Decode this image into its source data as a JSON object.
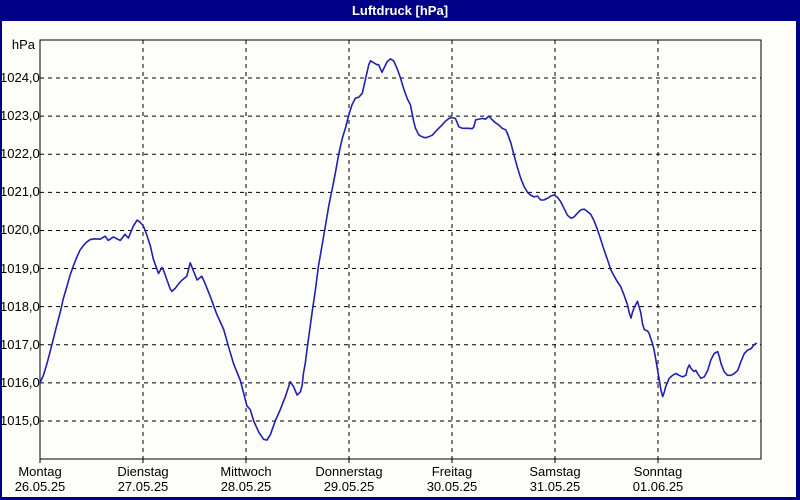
{
  "window": {
    "title": "Luftdruck [hPa]"
  },
  "colors": {
    "frame": "#000086",
    "title_text": "#ffffff",
    "plot_bg": "#fdfdfa",
    "grid": "#000000",
    "axis": "#000000",
    "line": "#2121af",
    "label_text": "#000000"
  },
  "chart_data": {
    "type": "line",
    "title": "Luftdruck [hPa]",
    "ylabel": "hPa",
    "ylim": [
      1014,
      1025
    ],
    "grid": "dashed",
    "legend": "none",
    "yticks": [
      {
        "v": 1024,
        "label": "1024,0"
      },
      {
        "v": 1023,
        "label": "1023,0"
      },
      {
        "v": 1022,
        "label": "1022,0"
      },
      {
        "v": 1021,
        "label": "1021,0"
      },
      {
        "v": 1020,
        "label": "1020,0"
      },
      {
        "v": 1019,
        "label": "1019,0"
      },
      {
        "v": 1018,
        "label": "1018,0"
      },
      {
        "v": 1017,
        "label": "1017,0"
      },
      {
        "v": 1016,
        "label": "1016,0"
      },
      {
        "v": 1015,
        "label": "1015,0"
      }
    ],
    "x_days": [
      {
        "name": "Montag",
        "date": "26.05.25"
      },
      {
        "name": "Dienstag",
        "date": "27.05.25"
      },
      {
        "name": "Mittwoch",
        "date": "28.05.25"
      },
      {
        "name": "Donnerstag",
        "date": "29.05.25"
      },
      {
        "name": "Freitag",
        "date": "30.05.25"
      },
      {
        "name": "Samstag",
        "date": "31.05.25"
      },
      {
        "name": "Sonntag",
        "date": "01.06.25"
      }
    ],
    "x_range_hours": [
      0,
      168
    ],
    "series": [
      {
        "name": "Luftdruck",
        "unit": "hPa",
        "points": [
          [
            0.0,
            1016.0
          ],
          [
            0.8,
            1016.2
          ],
          [
            1.6,
            1016.5
          ],
          [
            2.3,
            1016.8
          ],
          [
            3.1,
            1017.15
          ],
          [
            3.9,
            1017.5
          ],
          [
            4.7,
            1017.85
          ],
          [
            5.4,
            1018.2
          ],
          [
            6.2,
            1018.5
          ],
          [
            7.0,
            1018.82
          ],
          [
            7.8,
            1019.08
          ],
          [
            8.6,
            1019.3
          ],
          [
            9.3,
            1019.48
          ],
          [
            10.1,
            1019.6
          ],
          [
            10.9,
            1019.7
          ],
          [
            11.7,
            1019.76
          ],
          [
            12.8,
            1019.78
          ],
          [
            14.0,
            1019.77
          ],
          [
            15.2,
            1019.85
          ],
          [
            15.9,
            1019.74
          ],
          [
            17.1,
            1019.83
          ],
          [
            17.9,
            1019.78
          ],
          [
            18.7,
            1019.74
          ],
          [
            19.8,
            1019.9
          ],
          [
            20.6,
            1019.8
          ],
          [
            21.7,
            1020.1
          ],
          [
            22.6,
            1020.27
          ],
          [
            23.3,
            1020.22
          ],
          [
            24.0,
            1020.13
          ],
          [
            24.5,
            1020.0
          ],
          [
            24.9,
            1019.87
          ],
          [
            25.7,
            1019.6
          ],
          [
            26.4,
            1019.25
          ],
          [
            27.2,
            1019.0
          ],
          [
            27.6,
            1018.87
          ],
          [
            28.0,
            1018.95
          ],
          [
            28.4,
            1019.03
          ],
          [
            28.8,
            1018.95
          ],
          [
            29.6,
            1018.7
          ],
          [
            30.3,
            1018.48
          ],
          [
            30.7,
            1018.4
          ],
          [
            31.5,
            1018.48
          ],
          [
            32.3,
            1018.6
          ],
          [
            33.1,
            1018.7
          ],
          [
            34.2,
            1018.8
          ],
          [
            35.0,
            1019.15
          ],
          [
            36.6,
            1018.7
          ],
          [
            37.7,
            1018.8
          ],
          [
            38.5,
            1018.6
          ],
          [
            39.7,
            1018.26
          ],
          [
            41.2,
            1017.8
          ],
          [
            42.8,
            1017.4
          ],
          [
            43.9,
            1016.96
          ],
          [
            45.1,
            1016.5
          ],
          [
            46.7,
            1016.06
          ],
          [
            48.2,
            1015.4
          ],
          [
            49.0,
            1015.3
          ],
          [
            49.8,
            1015.0
          ],
          [
            51.0,
            1014.7
          ],
          [
            52.1,
            1014.52
          ],
          [
            52.9,
            1014.5
          ],
          [
            53.7,
            1014.65
          ],
          [
            54.8,
            1015.0
          ],
          [
            56.0,
            1015.3
          ],
          [
            57.2,
            1015.65
          ],
          [
            58.3,
            1016.03
          ],
          [
            59.1,
            1015.9
          ],
          [
            59.9,
            1015.68
          ],
          [
            60.7,
            1015.77
          ],
          [
            61.1,
            1015.95
          ],
          [
            61.4,
            1016.26
          ],
          [
            61.8,
            1016.5
          ],
          [
            62.2,
            1016.85
          ],
          [
            62.6,
            1017.2
          ],
          [
            63.4,
            1017.85
          ],
          [
            64.2,
            1018.46
          ],
          [
            64.9,
            1019.07
          ],
          [
            65.7,
            1019.6
          ],
          [
            66.5,
            1020.12
          ],
          [
            67.3,
            1020.65
          ],
          [
            68.1,
            1021.1
          ],
          [
            68.8,
            1021.5
          ],
          [
            69.6,
            1022.0
          ],
          [
            70.4,
            1022.4
          ],
          [
            71.2,
            1022.7
          ],
          [
            72.0,
            1023.05
          ],
          [
            72.7,
            1023.3
          ],
          [
            73.5,
            1023.47
          ],
          [
            74.3,
            1023.5
          ],
          [
            75.1,
            1023.6
          ],
          [
            75.8,
            1023.95
          ],
          [
            76.6,
            1024.34
          ],
          [
            77.0,
            1024.45
          ],
          [
            77.8,
            1024.4
          ],
          [
            78.5,
            1024.35
          ],
          [
            78.9,
            1024.35
          ],
          [
            79.7,
            1024.15
          ],
          [
            80.1,
            1024.25
          ],
          [
            80.9,
            1024.43
          ],
          [
            81.7,
            1024.5
          ],
          [
            82.4,
            1024.45
          ],
          [
            83.2,
            1024.25
          ],
          [
            84.0,
            1024.0
          ],
          [
            84.8,
            1023.7
          ],
          [
            85.6,
            1023.45
          ],
          [
            86.3,
            1023.3
          ],
          [
            86.7,
            1023.07
          ],
          [
            87.1,
            1022.85
          ],
          [
            87.5,
            1022.68
          ],
          [
            88.3,
            1022.5
          ],
          [
            89.0,
            1022.46
          ],
          [
            89.8,
            1022.43
          ],
          [
            90.6,
            1022.46
          ],
          [
            91.4,
            1022.5
          ],
          [
            92.2,
            1022.6
          ],
          [
            92.9,
            1022.68
          ],
          [
            93.7,
            1022.77
          ],
          [
            94.5,
            1022.87
          ],
          [
            95.3,
            1022.94
          ],
          [
            96.0,
            1022.96
          ],
          [
            96.8,
            1022.94
          ],
          [
            97.6,
            1022.72
          ],
          [
            98.4,
            1022.68
          ],
          [
            99.9,
            1022.68
          ],
          [
            100.7,
            1022.67
          ],
          [
            101.1,
            1022.72
          ],
          [
            101.5,
            1022.9
          ],
          [
            103.1,
            1022.94
          ],
          [
            103.8,
            1022.92
          ],
          [
            104.6,
            1023.0
          ],
          [
            105.4,
            1022.9
          ],
          [
            106.2,
            1022.82
          ],
          [
            106.9,
            1022.77
          ],
          [
            107.7,
            1022.68
          ],
          [
            108.5,
            1022.64
          ],
          [
            108.9,
            1022.55
          ],
          [
            109.7,
            1022.3
          ],
          [
            110.4,
            1022.0
          ],
          [
            111.2,
            1021.67
          ],
          [
            112.0,
            1021.37
          ],
          [
            112.8,
            1021.15
          ],
          [
            113.6,
            1021.0
          ],
          [
            114.3,
            1020.93
          ],
          [
            115.1,
            1020.88
          ],
          [
            115.9,
            1020.9
          ],
          [
            116.7,
            1020.8
          ],
          [
            117.4,
            1020.8
          ],
          [
            118.2,
            1020.84
          ],
          [
            119.0,
            1020.9
          ],
          [
            119.8,
            1020.93
          ],
          [
            120.5,
            1020.88
          ],
          [
            121.3,
            1020.76
          ],
          [
            122.1,
            1020.58
          ],
          [
            122.9,
            1020.4
          ],
          [
            123.7,
            1020.32
          ],
          [
            124.4,
            1020.35
          ],
          [
            125.2,
            1020.45
          ],
          [
            126.0,
            1020.54
          ],
          [
            126.8,
            1020.56
          ],
          [
            127.5,
            1020.5
          ],
          [
            128.3,
            1020.43
          ],
          [
            129.1,
            1020.25
          ],
          [
            129.9,
            1020.02
          ],
          [
            130.7,
            1019.75
          ],
          [
            131.4,
            1019.5
          ],
          [
            132.2,
            1019.24
          ],
          [
            133.0,
            1018.97
          ],
          [
            133.8,
            1018.8
          ],
          [
            134.5,
            1018.66
          ],
          [
            135.3,
            1018.53
          ],
          [
            136.1,
            1018.3
          ],
          [
            136.9,
            1018.05
          ],
          [
            137.3,
            1017.84
          ],
          [
            137.7,
            1017.7
          ],
          [
            138.0,
            1017.84
          ],
          [
            138.4,
            1017.96
          ],
          [
            139.2,
            1018.14
          ],
          [
            139.6,
            1018.0
          ],
          [
            140.0,
            1017.84
          ],
          [
            140.4,
            1017.54
          ],
          [
            140.8,
            1017.4
          ],
          [
            141.6,
            1017.36
          ],
          [
            141.9,
            1017.3
          ],
          [
            142.3,
            1017.17
          ],
          [
            142.7,
            1017.04
          ],
          [
            143.1,
            1016.86
          ],
          [
            143.5,
            1016.6
          ],
          [
            143.9,
            1016.33
          ],
          [
            144.3,
            1016.07
          ],
          [
            144.7,
            1015.8
          ],
          [
            145.1,
            1015.64
          ],
          [
            145.5,
            1015.77
          ],
          [
            145.8,
            1015.9
          ],
          [
            146.6,
            1016.12
          ],
          [
            147.4,
            1016.2
          ],
          [
            148.2,
            1016.25
          ],
          [
            148.9,
            1016.2
          ],
          [
            149.7,
            1016.16
          ],
          [
            150.5,
            1016.2
          ],
          [
            150.9,
            1016.38
          ],
          [
            151.3,
            1016.47
          ],
          [
            151.7,
            1016.38
          ],
          [
            152.4,
            1016.3
          ],
          [
            152.8,
            1016.33
          ],
          [
            153.2,
            1016.25
          ],
          [
            154.0,
            1016.12
          ],
          [
            154.8,
            1016.16
          ],
          [
            155.6,
            1016.33
          ],
          [
            156.3,
            1016.6
          ],
          [
            157.1,
            1016.77
          ],
          [
            157.9,
            1016.82
          ],
          [
            158.3,
            1016.68
          ],
          [
            158.7,
            1016.5
          ],
          [
            159.4,
            1016.3
          ],
          [
            160.2,
            1016.2
          ],
          [
            161.0,
            1016.2
          ],
          [
            161.8,
            1016.25
          ],
          [
            162.6,
            1016.33
          ],
          [
            163.3,
            1016.55
          ],
          [
            164.1,
            1016.77
          ],
          [
            164.9,
            1016.86
          ],
          [
            165.7,
            1016.9
          ],
          [
            166.4,
            1017.0
          ],
          [
            167.0,
            1017.05
          ]
        ]
      }
    ]
  }
}
